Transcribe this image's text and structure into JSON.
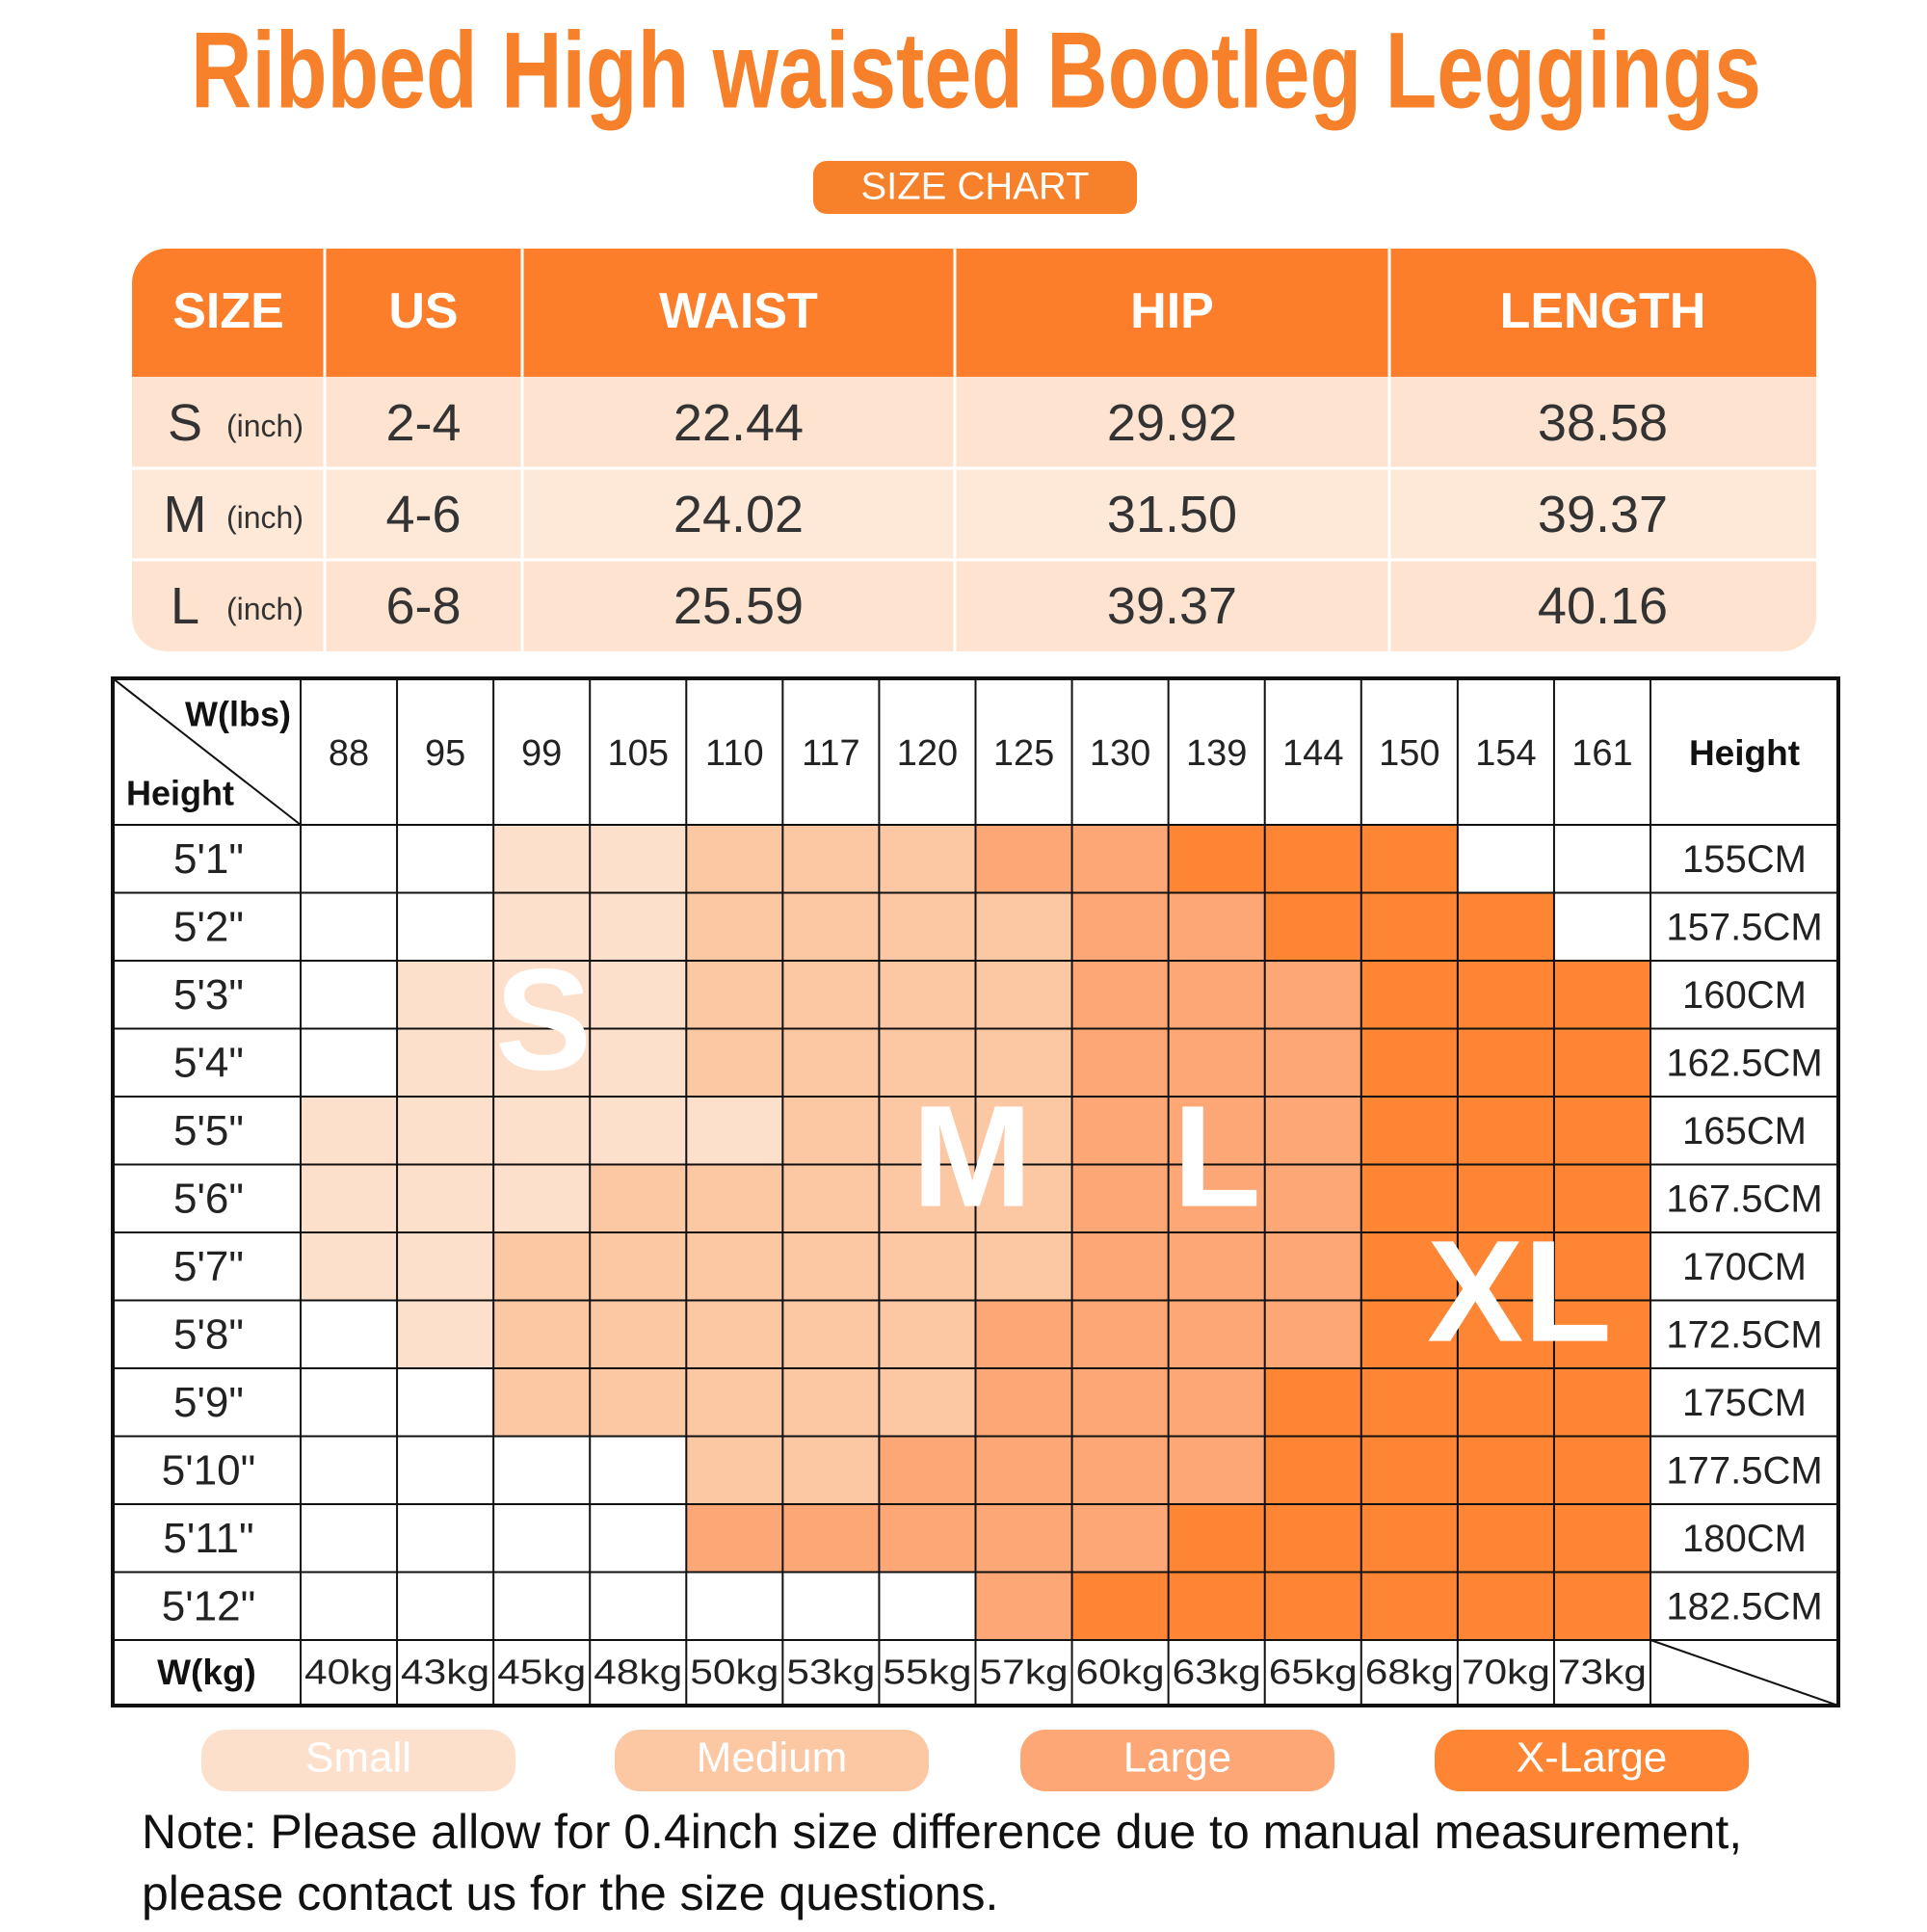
{
  "title": "Ribbed High waisted Bootleg Leggings",
  "subtitle": "SIZE CHART",
  "size_table": {
    "headers": [
      "SIZE",
      "US",
      "WAIST",
      "HIP",
      "LENGTH"
    ],
    "rows": [
      {
        "size": "S",
        "unit": "(inch)",
        "us": "2-4",
        "waist": "22.44",
        "hip": "29.92",
        "length": "38.58"
      },
      {
        "size": "M",
        "unit": "(inch)",
        "us": "4-6",
        "waist": "24.02",
        "hip": "31.50",
        "length": "39.37"
      },
      {
        "size": "L",
        "unit": "(inch)",
        "us": "6-8",
        "waist": "25.59",
        "hip": "39.37",
        "length": "40.16"
      }
    ]
  },
  "fit_chart": {
    "weight_label": "W(lbs)",
    "height_label": "Height",
    "height_cm_header": "Height",
    "weights_lbs": [
      88,
      95,
      99,
      105,
      110,
      117,
      120,
      125,
      130,
      139,
      144,
      150,
      154,
      161
    ],
    "rows": [
      {
        "height": "5'1\"",
        "cm": "155CM",
        "cells": [
          null,
          null,
          "#fde0cc",
          "#fde0cc",
          "#fcc7a3",
          "#fcc7a3",
          "#fcc7a3",
          "#fca775",
          "#fca775",
          "#fd8533",
          "#fd8533",
          "#fd8533",
          null,
          null
        ]
      },
      {
        "height": "5'2\"",
        "cm": "157.5CM",
        "cells": [
          null,
          null,
          "#fde0cc",
          "#fde0cc",
          "#fcc7a3",
          "#fcc7a3",
          "#fcc7a3",
          "#fcc7a3",
          "#fca775",
          "#fca775",
          "#fd8533",
          "#fd8533",
          "#fd8533",
          null
        ]
      },
      {
        "height": "5'3\"",
        "cm": "160CM",
        "cells": [
          null,
          "#fde0cc",
          "#fde0cc",
          "#fde0cc",
          "#fcc7a3",
          "#fcc7a3",
          "#fcc7a3",
          "#fcc7a3",
          "#fca775",
          "#fca775",
          "#fca775",
          "#fd8533",
          "#fd8533",
          "#fd8533"
        ]
      },
      {
        "height": "5'4\"",
        "cm": "162.5CM",
        "cells": [
          null,
          "#fde0cc",
          "#fde0cc",
          "#fde0cc",
          "#fcc7a3",
          "#fcc7a3",
          "#fcc7a3",
          "#fcc7a3",
          "#fca775",
          "#fca775",
          "#fca775",
          "#fd8533",
          "#fd8533",
          "#fd8533"
        ]
      },
      {
        "height": "5'5\"",
        "cm": "165CM",
        "cells": [
          "#fde0cc",
          "#fde0cc",
          "#fde0cc",
          "#fde0cc",
          "#fde0cc",
          "#fcc7a3",
          "#fcc7a3",
          "#fcc7a3",
          "#fca775",
          "#fca775",
          "#fca775",
          "#fd8533",
          "#fd8533",
          "#fd8533"
        ]
      },
      {
        "height": "5'6\"",
        "cm": "167.5CM",
        "cells": [
          "#fde0cc",
          "#fde0cc",
          "#fde0cc",
          "#fcc7a3",
          "#fcc7a3",
          "#fcc7a3",
          "#fcc7a3",
          "#fcc7a3",
          "#fca775",
          "#fca775",
          "#fca775",
          "#fd8533",
          "#fd8533",
          "#fd8533"
        ]
      },
      {
        "height": "5'7\"",
        "cm": "170CM",
        "cells": [
          "#fde0cc",
          "#fde0cc",
          "#fcc7a3",
          "#fcc7a3",
          "#fcc7a3",
          "#fcc7a3",
          "#fcc7a3",
          "#fcc7a3",
          "#fca775",
          "#fca775",
          "#fca775",
          "#fd8533",
          "#fd8533",
          "#fd8533"
        ]
      },
      {
        "height": "5'8\"",
        "cm": "172.5CM",
        "cells": [
          null,
          "#fde0cc",
          "#fcc7a3",
          "#fcc7a3",
          "#fcc7a3",
          "#fcc7a3",
          "#fcc7a3",
          "#fca775",
          "#fca775",
          "#fca775",
          "#fca775",
          "#fd8533",
          "#fd8533",
          "#fd8533"
        ]
      },
      {
        "height": "5'9\"",
        "cm": "175CM",
        "cells": [
          null,
          null,
          "#fcc7a3",
          "#fcc7a3",
          "#fcc7a3",
          "#fcc7a3",
          "#fcc7a3",
          "#fca775",
          "#fca775",
          "#fca775",
          "#fd8533",
          "#fd8533",
          "#fd8533",
          "#fd8533"
        ]
      },
      {
        "height": "5'10\"",
        "cm": "177.5CM",
        "cells": [
          null,
          null,
          null,
          null,
          "#fcc7a3",
          "#fcc7a3",
          "#fca775",
          "#fca775",
          "#fca775",
          "#fca775",
          "#fd8533",
          "#fd8533",
          "#fd8533",
          "#fd8533"
        ]
      },
      {
        "height": "5'11\"",
        "cm": "180CM",
        "cells": [
          null,
          null,
          null,
          null,
          "#fca775",
          "#fca775",
          "#fca775",
          "#fca775",
          "#fca775",
          "#fd8533",
          "#fd8533",
          "#fd8533",
          "#fd8533",
          "#fd8533"
        ]
      },
      {
        "height": "5'12\"",
        "cm": "182.5CM",
        "cells": [
          null,
          null,
          null,
          null,
          null,
          null,
          null,
          "#fca775",
          "#fd8533",
          "#fd8533",
          "#fd8533",
          "#fd8533",
          "#fd8533",
          "#fd8533"
        ]
      }
    ],
    "kg_label": "W(kg)",
    "weights_kg": [
      "40kg",
      "43kg",
      "45kg",
      "48kg",
      "50kg",
      "53kg",
      "55kg",
      "57kg",
      "60kg",
      "63kg",
      "65kg",
      "68kg",
      "70kg",
      "73kg"
    ],
    "zone_labels": [
      "S",
      "M",
      "L",
      "XL"
    ]
  },
  "legend": [
    {
      "label": "Small",
      "color": "#fde0cc"
    },
    {
      "label": "Medium",
      "color": "#fcc7a3"
    },
    {
      "label": "Large",
      "color": "#fca775"
    },
    {
      "label": "X-Large",
      "color": "#fd8533"
    }
  ],
  "note": [
    "Note: Please allow for 0.4inch size difference due to manual measurement,",
    "please contact us for the size questions."
  ]
}
